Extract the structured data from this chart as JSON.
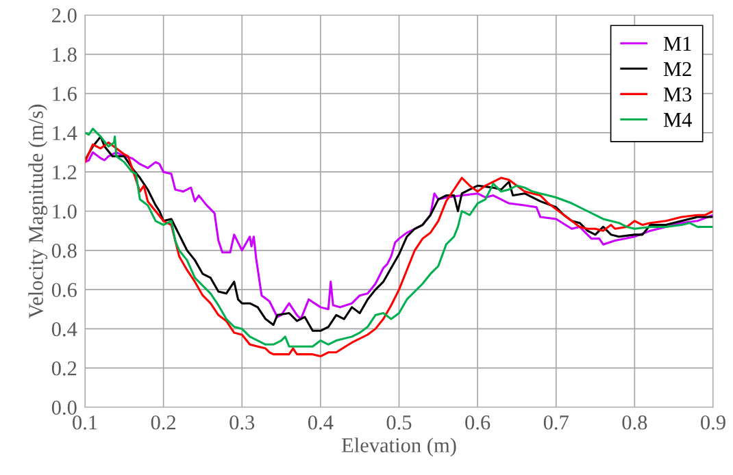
{
  "chart_data": {
    "type": "line",
    "xlabel": "Elevation (m)",
    "ylabel": "Velocity Magnitude (m/s)",
    "xlim": [
      0.1,
      0.9
    ],
    "xticks": [
      0.1,
      0.2,
      0.3,
      0.4,
      0.5,
      0.6,
      0.7,
      0.8,
      0.9
    ],
    "ylim": [
      0,
      2
    ],
    "yticks": [
      {
        "value": 0,
        "label": "0.0"
      },
      {
        "value": 0.2,
        "label": "0.2"
      },
      {
        "value": 0.4,
        "label": "0.4"
      },
      {
        "value": 0.6,
        "label": "0.6"
      },
      {
        "value": 0.8,
        "label": "0.8"
      },
      {
        "value": 1,
        "label": "1.0"
      },
      {
        "value": 1.2,
        "label": "1.2"
      },
      {
        "value": 1.4,
        "label": "1.4"
      },
      {
        "value": 1.6,
        "label": "1.6"
      },
      {
        "value": 1.8,
        "label": "1.8"
      },
      {
        "value": 2,
        "label": "2.0"
      }
    ],
    "grid": true,
    "legend": "top right",
    "marker": "none",
    "line_style": "solid",
    "series": [
      {
        "name": "M1",
        "color": "#cc00ff",
        "x": [
          0.1,
          0.105,
          0.11,
          0.12,
          0.125,
          0.13,
          0.14,
          0.15,
          0.16,
          0.17,
          0.18,
          0.19,
          0.195,
          0.2,
          0.21,
          0.215,
          0.225,
          0.235,
          0.24,
          0.245,
          0.255,
          0.265,
          0.27,
          0.275,
          0.285,
          0.29,
          0.3,
          0.31,
          0.312,
          0.315,
          0.318,
          0.325,
          0.335,
          0.345,
          0.35,
          0.36,
          0.37,
          0.375,
          0.385,
          0.4,
          0.41,
          0.413,
          0.416,
          0.425,
          0.44,
          0.45,
          0.46,
          0.47,
          0.48,
          0.485,
          0.49,
          0.495,
          0.5,
          0.51,
          0.52,
          0.53,
          0.54,
          0.545,
          0.55,
          0.56,
          0.58,
          0.6,
          0.61,
          0.62,
          0.64,
          0.66,
          0.675,
          0.68,
          0.7,
          0.72,
          0.73,
          0.745,
          0.755,
          0.76,
          0.775,
          0.8,
          0.82,
          0.84,
          0.86,
          0.88,
          0.9
        ],
        "values": [
          1.25,
          1.26,
          1.3,
          1.27,
          1.26,
          1.28,
          1.3,
          1.28,
          1.27,
          1.24,
          1.22,
          1.25,
          1.24,
          1.2,
          1.19,
          1.11,
          1.1,
          1.12,
          1.05,
          1.08,
          1.03,
          0.99,
          0.85,
          0.79,
          0.79,
          0.88,
          0.8,
          0.87,
          0.82,
          0.87,
          0.76,
          0.57,
          0.54,
          0.46,
          0.47,
          0.53,
          0.47,
          0.45,
          0.55,
          0.51,
          0.5,
          0.64,
          0.52,
          0.51,
          0.53,
          0.57,
          0.58,
          0.63,
          0.71,
          0.73,
          0.77,
          0.84,
          0.86,
          0.89,
          0.91,
          0.93,
          0.98,
          1.09,
          1.06,
          1.07,
          1.08,
          1.09,
          1.07,
          1.08,
          1.04,
          1.03,
          1.02,
          0.97,
          0.96,
          0.91,
          0.92,
          0.86,
          0.86,
          0.83,
          0.85,
          0.87,
          0.9,
          0.92,
          0.94,
          0.95,
          0.98
        ]
      },
      {
        "name": "M2",
        "color": "#000000",
        "x": [
          0.1,
          0.11,
          0.12,
          0.125,
          0.135,
          0.15,
          0.16,
          0.17,
          0.18,
          0.19,
          0.195,
          0.2,
          0.21,
          0.22,
          0.23,
          0.24,
          0.25,
          0.26,
          0.27,
          0.28,
          0.29,
          0.295,
          0.3,
          0.31,
          0.32,
          0.33,
          0.34,
          0.345,
          0.36,
          0.37,
          0.38,
          0.39,
          0.4,
          0.41,
          0.42,
          0.43,
          0.44,
          0.45,
          0.46,
          0.47,
          0.48,
          0.49,
          0.5,
          0.51,
          0.52,
          0.53,
          0.54,
          0.55,
          0.56,
          0.57,
          0.575,
          0.58,
          0.59,
          0.6,
          0.62,
          0.63,
          0.64,
          0.645,
          0.66,
          0.68,
          0.7,
          0.71,
          0.72,
          0.73,
          0.74,
          0.75,
          0.76,
          0.77,
          0.78,
          0.8,
          0.81,
          0.82,
          0.84,
          0.86,
          0.88,
          0.9
        ],
        "values": [
          1.26,
          1.33,
          1.38,
          1.33,
          1.28,
          1.28,
          1.22,
          1.17,
          1.11,
          1.03,
          1.0,
          0.95,
          0.96,
          0.88,
          0.8,
          0.75,
          0.68,
          0.66,
          0.59,
          0.58,
          0.64,
          0.55,
          0.53,
          0.53,
          0.51,
          0.45,
          0.42,
          0.47,
          0.48,
          0.44,
          0.46,
          0.39,
          0.39,
          0.41,
          0.47,
          0.45,
          0.51,
          0.48,
          0.55,
          0.6,
          0.64,
          0.71,
          0.78,
          0.87,
          0.91,
          0.93,
          0.98,
          1.06,
          1.08,
          1.08,
          1.0,
          1.09,
          1.11,
          1.13,
          1.12,
          1.11,
          1.15,
          1.08,
          1.09,
          1.05,
          1.02,
          0.98,
          0.95,
          0.94,
          0.9,
          0.88,
          0.92,
          0.88,
          0.87,
          0.88,
          0.88,
          0.93,
          0.93,
          0.95,
          0.97,
          0.97
        ]
      },
      {
        "name": "M3",
        "color": "#ff0000",
        "x": [
          0.1,
          0.11,
          0.12,
          0.13,
          0.14,
          0.15,
          0.155,
          0.16,
          0.17,
          0.175,
          0.18,
          0.19,
          0.2,
          0.21,
          0.22,
          0.23,
          0.24,
          0.25,
          0.26,
          0.27,
          0.28,
          0.29,
          0.3,
          0.31,
          0.32,
          0.33,
          0.335,
          0.34,
          0.36,
          0.365,
          0.37,
          0.39,
          0.4,
          0.41,
          0.42,
          0.44,
          0.46,
          0.47,
          0.48,
          0.49,
          0.5,
          0.51,
          0.52,
          0.53,
          0.54,
          0.55,
          0.56,
          0.57,
          0.575,
          0.58,
          0.59,
          0.6,
          0.61,
          0.62,
          0.63,
          0.64,
          0.65,
          0.66,
          0.67,
          0.68,
          0.69,
          0.7,
          0.71,
          0.72,
          0.73,
          0.74,
          0.75,
          0.76,
          0.77,
          0.775,
          0.79,
          0.8,
          0.81,
          0.82,
          0.84,
          0.86,
          0.88,
          0.89,
          0.9
        ],
        "values": [
          1.25,
          1.34,
          1.32,
          1.35,
          1.32,
          1.29,
          1.28,
          1.22,
          1.1,
          1.13,
          1.05,
          1.0,
          0.95,
          0.93,
          0.77,
          0.7,
          0.64,
          0.57,
          0.53,
          0.47,
          0.44,
          0.38,
          0.37,
          0.32,
          0.31,
          0.3,
          0.28,
          0.27,
          0.27,
          0.3,
          0.27,
          0.27,
          0.26,
          0.28,
          0.28,
          0.33,
          0.37,
          0.4,
          0.45,
          0.52,
          0.6,
          0.7,
          0.8,
          0.86,
          0.89,
          0.95,
          1.05,
          1.11,
          1.14,
          1.17,
          1.13,
          1.1,
          1.13,
          1.15,
          1.17,
          1.16,
          1.13,
          1.1,
          1.09,
          1.08,
          1.04,
          1.01,
          0.98,
          0.95,
          0.92,
          0.91,
          0.91,
          0.9,
          0.93,
          0.91,
          0.92,
          0.95,
          0.93,
          0.94,
          0.95,
          0.97,
          0.98,
          0.98,
          1.0
        ]
      },
      {
        "name": "M4",
        "color": "#00b050",
        "x": [
          0.1,
          0.105,
          0.11,
          0.12,
          0.13,
          0.137,
          0.138,
          0.14,
          0.15,
          0.16,
          0.165,
          0.17,
          0.18,
          0.19,
          0.2,
          0.21,
          0.215,
          0.22,
          0.23,
          0.24,
          0.25,
          0.26,
          0.27,
          0.28,
          0.29,
          0.3,
          0.31,
          0.32,
          0.33,
          0.34,
          0.35,
          0.355,
          0.36,
          0.38,
          0.39,
          0.4,
          0.41,
          0.42,
          0.44,
          0.45,
          0.46,
          0.47,
          0.48,
          0.49,
          0.5,
          0.51,
          0.52,
          0.53,
          0.54,
          0.55,
          0.56,
          0.57,
          0.575,
          0.58,
          0.59,
          0.6,
          0.61,
          0.62,
          0.63,
          0.64,
          0.65,
          0.66,
          0.67,
          0.68,
          0.69,
          0.7,
          0.72,
          0.74,
          0.76,
          0.78,
          0.79,
          0.8,
          0.82,
          0.84,
          0.86,
          0.87,
          0.88,
          0.9
        ],
        "values": [
          1.4,
          1.39,
          1.42,
          1.38,
          1.33,
          1.35,
          1.38,
          1.28,
          1.25,
          1.2,
          1.19,
          1.06,
          1.03,
          0.95,
          0.93,
          0.95,
          0.85,
          0.8,
          0.75,
          0.66,
          0.62,
          0.58,
          0.52,
          0.45,
          0.41,
          0.4,
          0.36,
          0.34,
          0.32,
          0.32,
          0.34,
          0.36,
          0.31,
          0.31,
          0.31,
          0.34,
          0.32,
          0.34,
          0.36,
          0.38,
          0.41,
          0.47,
          0.48,
          0.45,
          0.48,
          0.55,
          0.59,
          0.63,
          0.68,
          0.72,
          0.83,
          0.87,
          0.92,
          1.0,
          0.98,
          1.04,
          1.06,
          1.14,
          1.1,
          1.11,
          1.13,
          1.12,
          1.1,
          1.09,
          1.08,
          1.07,
          1.04,
          1.0,
          0.96,
          0.94,
          0.92,
          0.91,
          0.92,
          0.92,
          0.93,
          0.94,
          0.92,
          0.92
        ]
      }
    ]
  }
}
